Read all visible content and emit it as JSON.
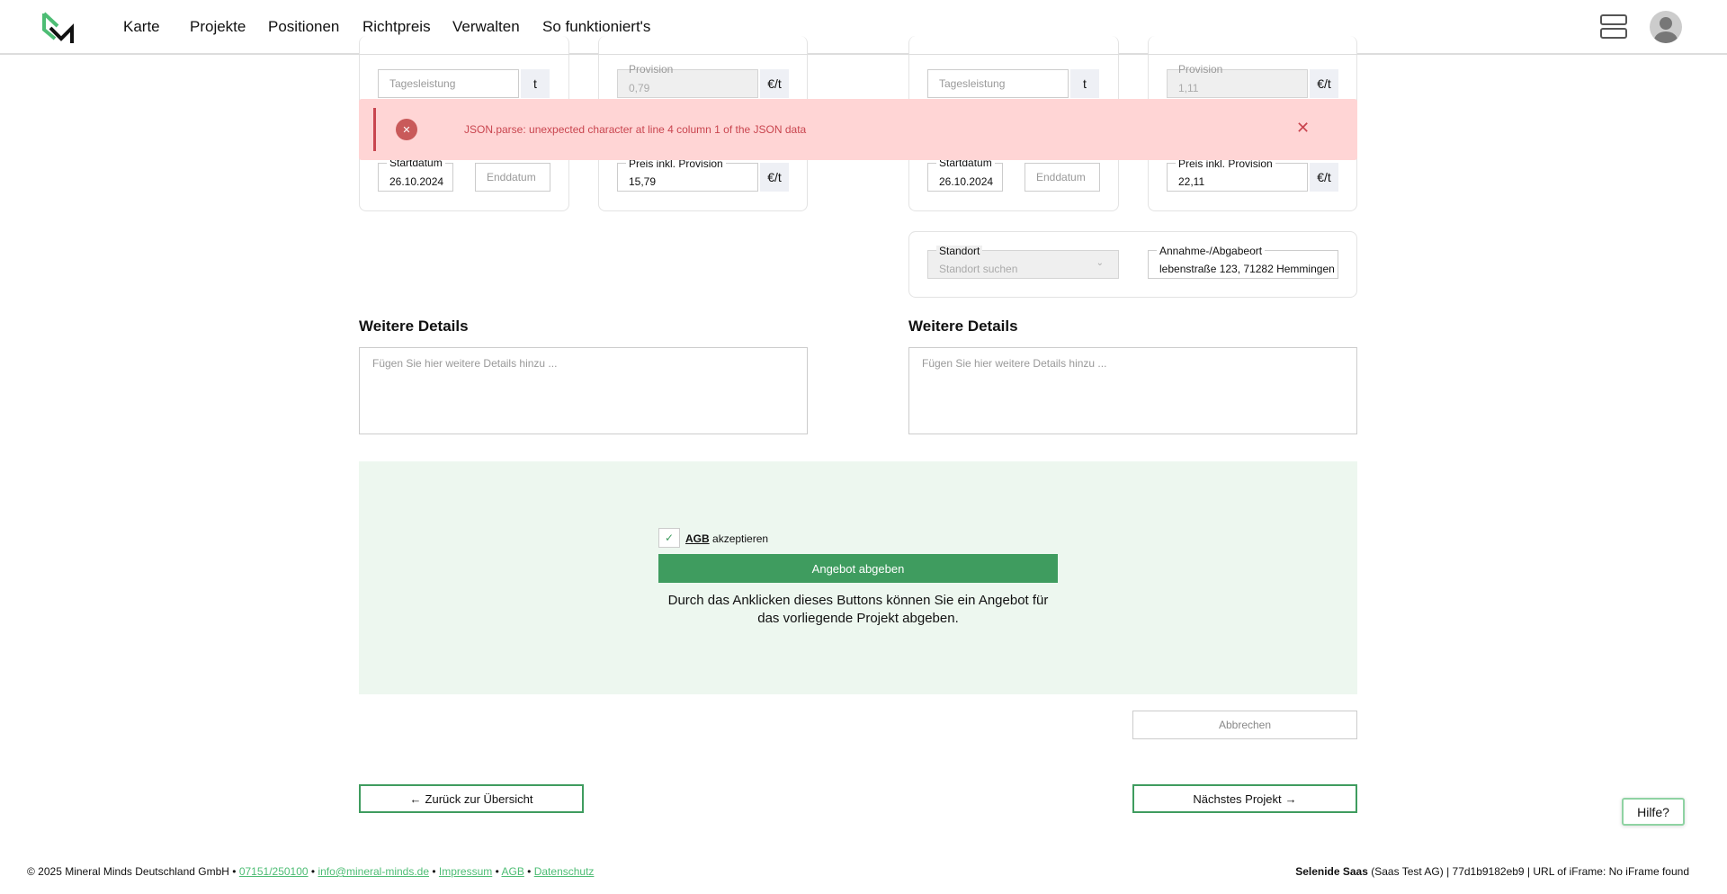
{
  "nav": {
    "items": [
      "Karte",
      "Projekte",
      "Positionen",
      "Richtpreis",
      "Verwalten",
      "So funktioniert's"
    ]
  },
  "colors": {
    "accent": "#3f9c5f",
    "logo_green": "#4dbd74",
    "error_bg": "#ffd5d5",
    "error_text": "#c9454f"
  },
  "left": {
    "tagesleistung_placeholder": "Tagesleistung",
    "unit_t": "t",
    "provision_label": "Provision",
    "provision_value": "0,79",
    "unit_eur": "€/t",
    "startdatum_label": "Startdatum",
    "startdatum_value": "26.10.2024",
    "enddatum_placeholder": "Enddatum",
    "preis_label": "Preis inkl. Provision",
    "preis_value": "15,79",
    "details_heading": "Weitere Details",
    "details_placeholder": "Fügen Sie hier weitere Details hinzu ..."
  },
  "right": {
    "tagesleistung_placeholder": "Tagesleistung",
    "unit_t": "t",
    "provision_label": "Provision",
    "provision_value": "1,11",
    "unit_eur": "€/t",
    "startdatum_label": "Startdatum",
    "startdatum_value": "26.10.2024",
    "enddatum_placeholder": "Enddatum",
    "preis_label": "Preis inkl. Provision",
    "preis_value": "22,11",
    "standort_label": "Standort",
    "standort_placeholder": "Standort suchen",
    "ort_label": "Annahme-/Abgabeort",
    "ort_value": "lebenstraße 123, 71282 Hemmingen",
    "details_heading": "Weitere Details",
    "details_placeholder": "Fügen Sie hier weitere Details hinzu ..."
  },
  "error": {
    "message": "JSON.parse: unexpected character at line 4 column 1 of the JSON data"
  },
  "offer": {
    "agb": "AGB",
    "accept": "akzeptieren",
    "submit": "Angebot abgeben",
    "note": "Durch das Anklicken dieses Buttons können Sie ein Angebot für das vorliegende Projekt abgeben."
  },
  "cancel": "Abbrechen",
  "back": "Zurück zur Übersicht",
  "next": "Nächstes Projekt",
  "help": "Hilfe?",
  "footer": {
    "copyright": "© 2025 Mineral Minds Deutschland GmbH •",
    "phone": "07151/250100",
    "email": "info@mineral-minds.de",
    "impressum": "Impressum",
    "agb": "AGB",
    "datenschutz": "Datenschutz",
    "sep": "•",
    "right_bold": "Selenide Saas",
    "right_rest": "(Saas Test AG) | 77d1b9182eb9 | URL of iFrame: No iFrame found"
  }
}
